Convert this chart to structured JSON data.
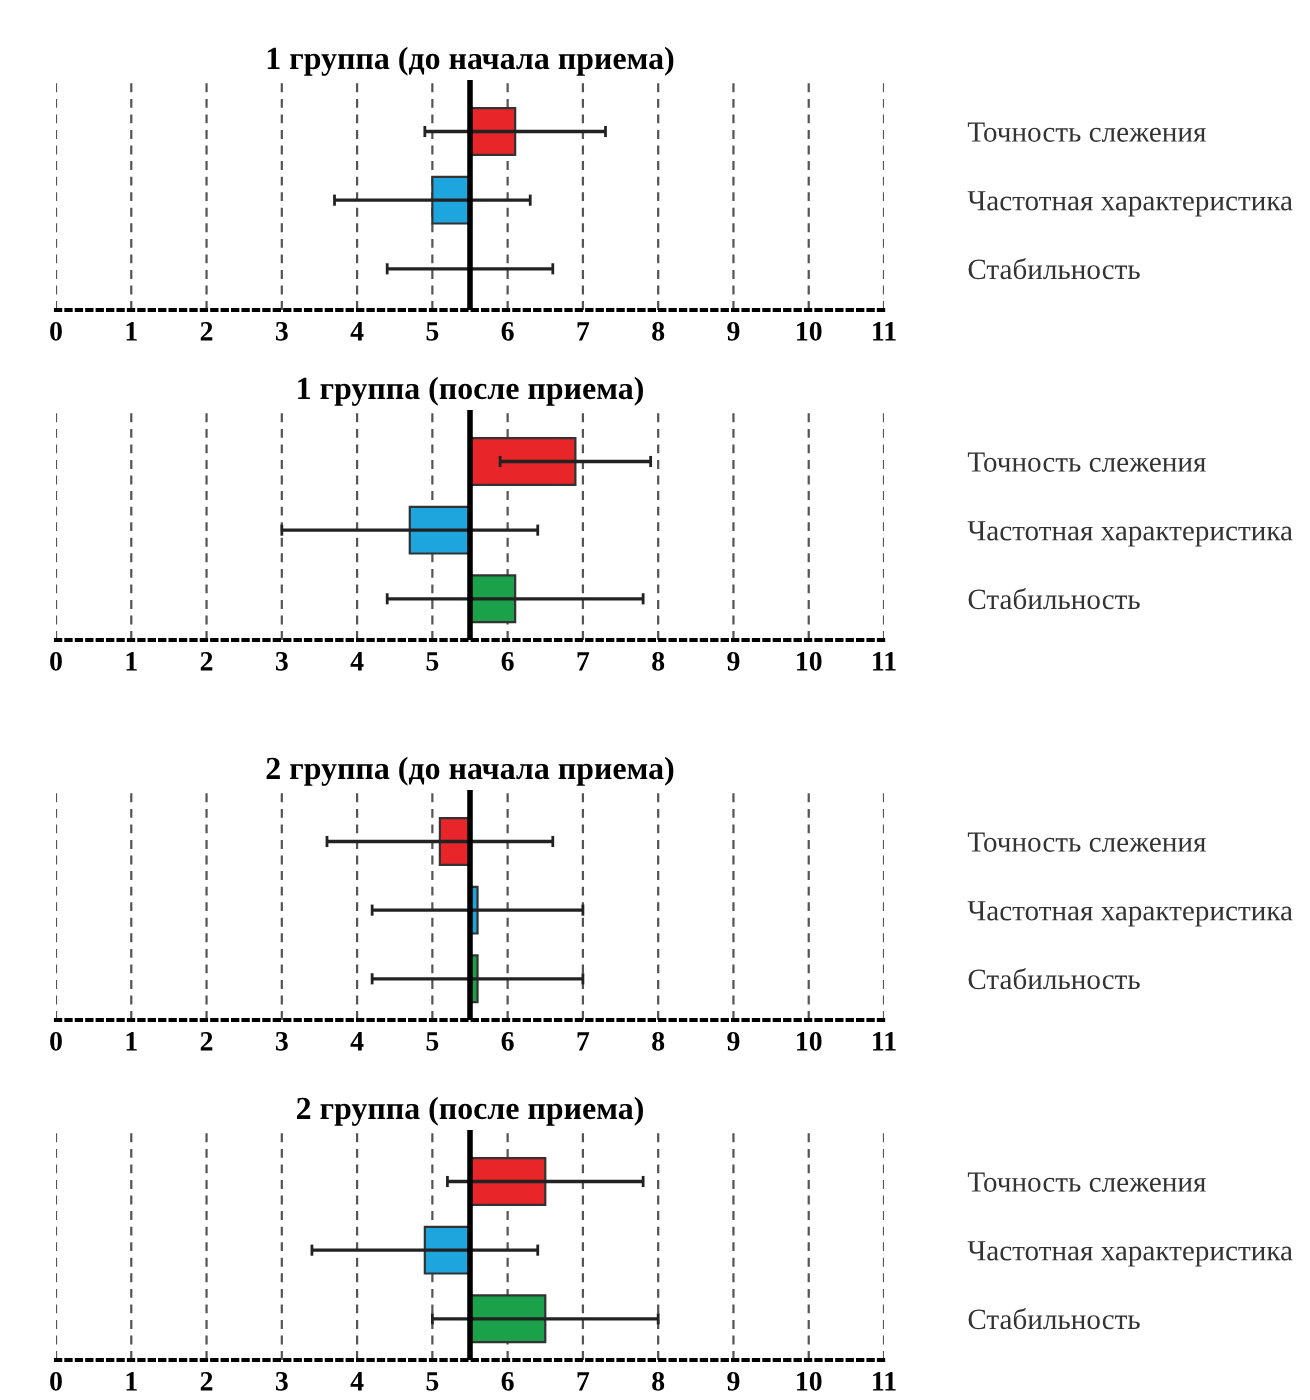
{
  "chart_data": [
    {
      "type": "bar",
      "orientation": "horizontal",
      "title": "1 группа (до начала приема)",
      "categories": [
        "Точность слежения",
        "Частотная характеристика",
        "Стабильность"
      ],
      "base": [
        5.5,
        5.5,
        5.5
      ],
      "values": [
        0.6,
        -0.5,
        0
      ],
      "errors": [
        1.2,
        1.3,
        1.1
      ],
      "colors": [
        "#e8262a",
        "#1ea5de",
        "#1aa14a"
      ],
      "xlim": [
        0,
        11
      ],
      "xticks": [
        0,
        1,
        2,
        3,
        4,
        5,
        6,
        7,
        8,
        9,
        10,
        11
      ],
      "grid": "x",
      "ref_lines": [
        {
          "axis": "x",
          "value": 5.5,
          "label": null
        }
      ]
    },
    {
      "type": "bar",
      "orientation": "horizontal",
      "title": "1 группа (после приема)",
      "categories": [
        "Точность слежения",
        "Частотная характеристика",
        "Стабильность"
      ],
      "base": [
        5.5,
        5.5,
        5.5
      ],
      "values": [
        1.4,
        -0.8,
        0.6
      ],
      "errors": [
        1.0,
        1.7,
        1.7
      ],
      "colors": [
        "#e8262a",
        "#1ea5de",
        "#1aa14a"
      ],
      "xlim": [
        0,
        11
      ],
      "xticks": [
        0,
        1,
        2,
        3,
        4,
        5,
        6,
        7,
        8,
        9,
        10,
        11
      ],
      "grid": "x",
      "ref_lines": [
        {
          "axis": "x",
          "value": 5.5,
          "label": null
        }
      ]
    },
    {
      "type": "bar",
      "orientation": "horizontal",
      "title": "2 группа (до начала приема)",
      "categories": [
        "Точность слежения",
        "Частотная характеристика",
        "Стабильность"
      ],
      "base": [
        5.5,
        5.5,
        5.5
      ],
      "values": [
        -0.4,
        0.1,
        0.1
      ],
      "errors": [
        1.5,
        1.4,
        1.4
      ],
      "colors": [
        "#e8262a",
        "#1ea5de",
        "#1aa14a"
      ],
      "xlim": [
        0,
        11
      ],
      "xticks": [
        0,
        1,
        2,
        3,
        4,
        5,
        6,
        7,
        8,
        9,
        10,
        11
      ],
      "grid": "x",
      "ref_lines": [
        {
          "axis": "x",
          "value": 5.5,
          "label": null
        }
      ]
    },
    {
      "type": "bar",
      "orientation": "horizontal",
      "title": "2 группа (после приема)",
      "categories": [
        "Точность слежения",
        "Частотная характеристика",
        "Стабильность"
      ],
      "base": [
        5.5,
        5.5,
        5.5
      ],
      "values": [
        1.0,
        -0.6,
        1.0
      ],
      "errors": [
        1.3,
        1.5,
        1.5
      ],
      "colors": [
        "#e8262a",
        "#1ea5de",
        "#1aa14a"
      ],
      "xlim": [
        0,
        11
      ],
      "xticks": [
        0,
        1,
        2,
        3,
        4,
        5,
        6,
        7,
        8,
        9,
        10,
        11
      ],
      "grid": "x",
      "ref_lines": [
        {
          "axis": "x",
          "value": 5.5,
          "label": null
        }
      ]
    }
  ]
}
